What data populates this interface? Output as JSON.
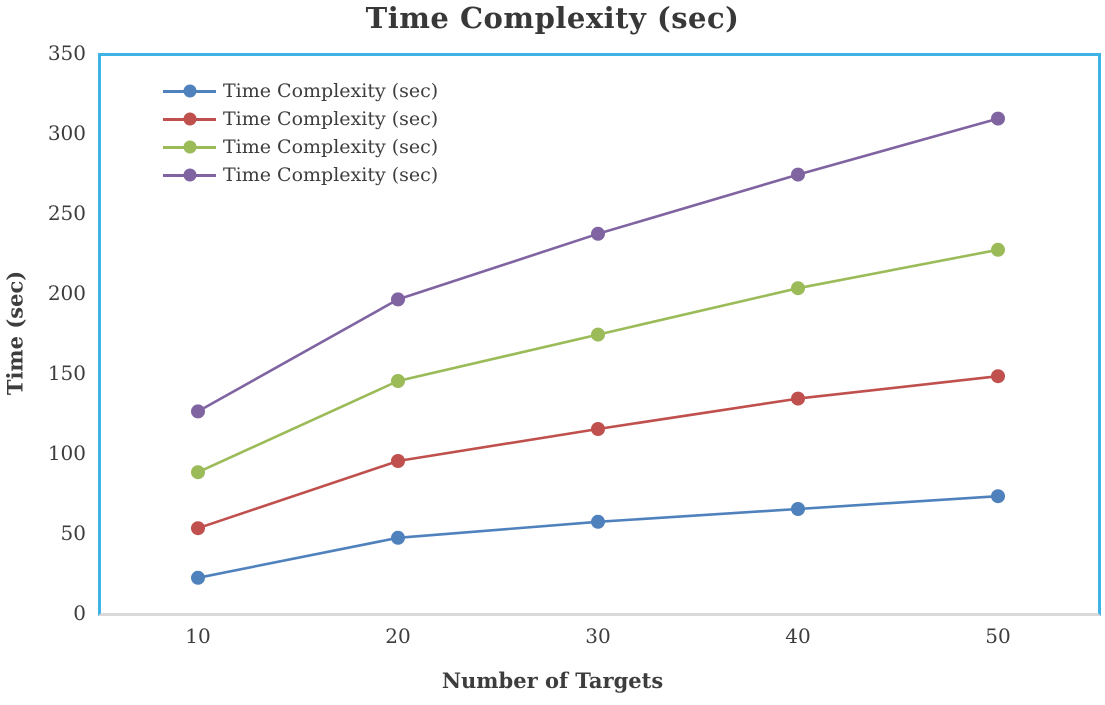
{
  "page": {
    "background_color": "#FFFFFF"
  },
  "chart_data": {
    "type": "line",
    "title": "Time Complexity (sec)",
    "xlabel": "Number of Targets",
    "ylabel": "Time (sec)",
    "categories": [
      "10",
      "20",
      "30",
      "40",
      "50"
    ],
    "series": [
      {
        "name": "Time Complexity (sec)",
        "color": "#4F81BD",
        "values": [
          22,
          47,
          57,
          65,
          73
        ]
      },
      {
        "name": "Time Complexity (sec)",
        "color": "#C0504D",
        "values": [
          53,
          95,
          115,
          134,
          148
        ]
      },
      {
        "name": "Time Complexity (sec)",
        "color": "#9BBB59",
        "values": [
          88,
          145,
          174,
          203,
          227
        ]
      },
      {
        "name": "Time Complexity (sec)",
        "color": "#8064A2",
        "values": [
          126,
          196,
          237,
          274,
          309
        ]
      }
    ],
    "ylim": [
      0,
      350
    ],
    "yticks": [
      0,
      50,
      100,
      150,
      200,
      250,
      300,
      350
    ],
    "grid": false,
    "legend_position": "top-left-inside",
    "plot_border_color": "#3EB4E6",
    "axis_line_color": "#D9D9D9",
    "text_color": "#3D3D3D",
    "marker_style": "circle",
    "line_width": 2.6,
    "marker_radius": 7
  }
}
